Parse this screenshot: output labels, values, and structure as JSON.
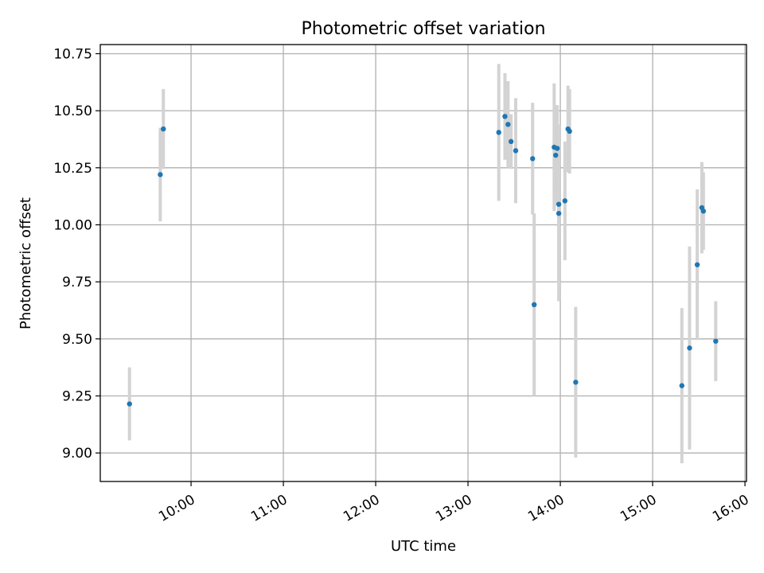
{
  "chart_data": {
    "type": "scatter",
    "title": "Photometric offset variation",
    "xlabel": "UTC time",
    "ylabel": "Photometric offset",
    "x_unit": "hours UTC",
    "xlim": [
      "09:01",
      "16:01"
    ],
    "ylim": [
      8.875,
      10.79
    ],
    "x_ticks": [
      "10:00",
      "11:00",
      "12:00",
      "13:00",
      "14:00",
      "15:00",
      "16:00"
    ],
    "y_ticks": [
      "9.00",
      "9.25",
      "9.50",
      "9.75",
      "10.00",
      "10.25",
      "10.50",
      "10.75"
    ],
    "grid": true,
    "point_color": "#1f77b4",
    "errorbar_color": "#d3d3d3",
    "points": [
      {
        "x": "09:20",
        "y": 9.215,
        "err": 0.16
      },
      {
        "x": "09:40",
        "y": 10.22,
        "err": 0.205
      },
      {
        "x": "09:42",
        "y": 10.42,
        "err": 0.175
      },
      {
        "x": "13:20",
        "y": 10.405,
        "err": 0.3
      },
      {
        "x": "13:24",
        "y": 10.475,
        "err": 0.19
      },
      {
        "x": "13:26",
        "y": 10.44,
        "err": 0.19
      },
      {
        "x": "13:28",
        "y": 10.365,
        "err": 0.12
      },
      {
        "x": "13:31",
        "y": 10.325,
        "err": 0.23
      },
      {
        "x": "13:42",
        "y": 10.29,
        "err": 0.245
      },
      {
        "x": "13:43",
        "y": 9.65,
        "err": 0.4
      },
      {
        "x": "13:56",
        "y": 10.34,
        "err": 0.28
      },
      {
        "x": "13:57",
        "y": 10.305,
        "err": 0.22
      },
      {
        "x": "13:58",
        "y": 10.335,
        "err": 0.19
      },
      {
        "x": "13:59",
        "y": 10.09,
        "err": 0.35
      },
      {
        "x": "13:59",
        "y": 10.05,
        "err": 0.385
      },
      {
        "x": "14:03",
        "y": 10.105,
        "err": 0.26
      },
      {
        "x": "14:05",
        "y": 10.42,
        "err": 0.19
      },
      {
        "x": "14:06",
        "y": 10.41,
        "err": 0.185
      },
      {
        "x": "14:10",
        "y": 9.31,
        "err": 0.33
      },
      {
        "x": "15:19",
        "y": 9.295,
        "err": 0.34
      },
      {
        "x": "15:24",
        "y": 9.46,
        "err": 0.445
      },
      {
        "x": "15:29",
        "y": 9.825,
        "err": 0.33
      },
      {
        "x": "15:32",
        "y": 10.075,
        "err": 0.2
      },
      {
        "x": "15:33",
        "y": 10.06,
        "err": 0.17
      },
      {
        "x": "15:41",
        "y": 9.49,
        "err": 0.175
      }
    ]
  }
}
